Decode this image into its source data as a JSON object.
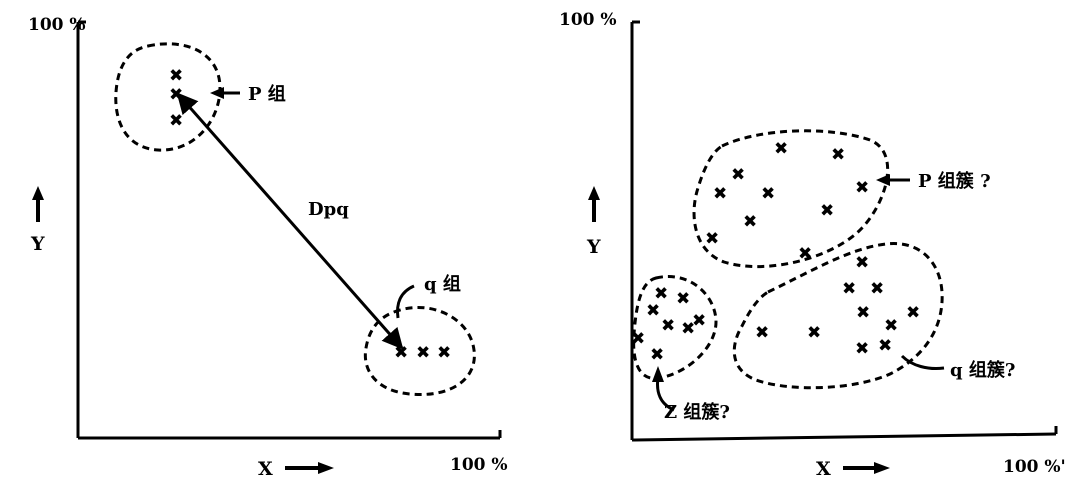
{
  "colors": {
    "ink": "#000000",
    "paper": "#ffffff"
  },
  "point_glyph": "✖",
  "left_panel": {
    "y_top_label": "100 %",
    "x_end_label": "100 %",
    "y_label": "Y",
    "x_label": "X",
    "p_group_label": "P 组",
    "q_group_label": "q 组",
    "distance_label": "Dpq"
  },
  "right_panel": {
    "y_top_label": "100 %",
    "x_end_label": "100 %'",
    "y_label": "Y",
    "x_label": "X",
    "p_cluster_label": "P 组簇 ?",
    "q_cluster_label": "q 组簇?",
    "z_cluster_label": "Z 组簇?"
  }
}
